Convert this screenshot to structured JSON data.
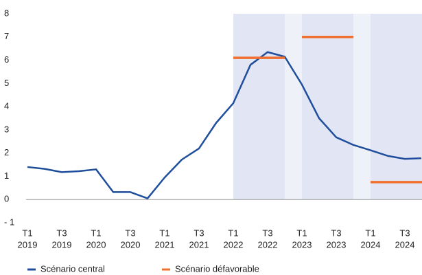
{
  "chart_data": {
    "type": "line",
    "categories": [
      [
        "T1",
        "2019"
      ],
      null,
      [
        "T3",
        "2019"
      ],
      null,
      [
        "T1",
        "2020"
      ],
      null,
      [
        "T3",
        "2020"
      ],
      null,
      [
        "T1",
        "2021"
      ],
      null,
      [
        "T3",
        "2021"
      ],
      null,
      [
        "T1",
        "2022"
      ],
      null,
      [
        "T3",
        "2022"
      ],
      null,
      [
        "T1",
        "2023"
      ],
      null,
      [
        "T3",
        "2023"
      ],
      null,
      [
        "T1",
        "2024"
      ],
      null,
      [
        "T3",
        "2024"
      ],
      null
    ],
    "series": [
      {
        "name": "Scénario central",
        "color": "#1f4e9c",
        "values": [
          1.4,
          1.32,
          1.18,
          1.22,
          1.3,
          0.32,
          0.32,
          0.05,
          0.95,
          1.72,
          2.2,
          3.3,
          4.15,
          5.8,
          6.35,
          6.15,
          4.95,
          3.5,
          2.68,
          2.35,
          2.12,
          1.88,
          1.75,
          1.78
        ]
      },
      {
        "name": "Scénario défavorable",
        "color": "#f07030",
        "values": [
          null,
          null,
          null,
          null,
          null,
          null,
          null,
          null,
          null,
          null,
          null,
          null,
          6.1,
          6.1,
          6.1,
          6.1,
          7.0,
          7.0,
          7.0,
          7.0,
          0.75,
          0.75,
          0.75,
          0.75
        ]
      }
    ],
    "ylim": [
      -1,
      8
    ],
    "yticks": [
      {
        "value": -1,
        "label": "- 1"
      },
      0,
      1,
      2,
      3,
      4,
      5,
      6,
      7,
      8
    ]
  }
}
